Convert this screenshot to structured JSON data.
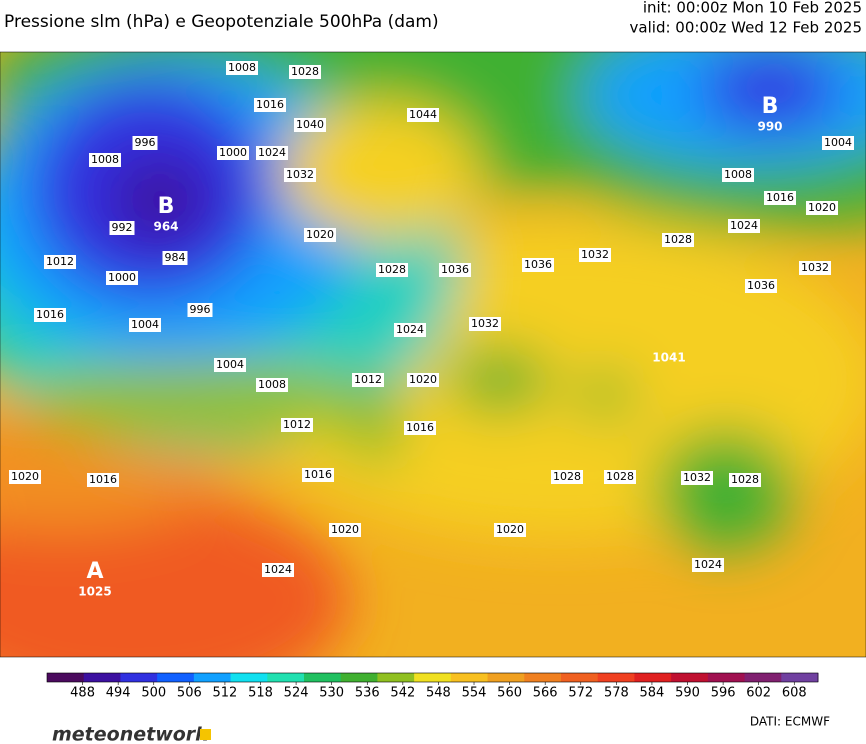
{
  "header": {
    "title": "Pressione slm (hPa) e Geopotenziale 500hPa (dam)",
    "init": "init: 00:00z Mon 10 Feb 2025",
    "valid": "valid: 00:00z Wed 12 Feb 2025"
  },
  "centers": [
    {
      "symbol": "B",
      "value": "964"
    },
    {
      "symbol": "B",
      "value": "990"
    },
    {
      "symbol": "A",
      "value": "1025"
    },
    {
      "symbol": "",
      "value": "1041"
    }
  ],
  "isobar_labels": [
    "1008",
    "1028",
    "1016",
    "1040",
    "1044",
    "1000",
    "1024",
    "1032",
    "996",
    "1008",
    "992",
    "984",
    "1012",
    "1000",
    "1016",
    "1004",
    "996",
    "1020",
    "1028",
    "1036",
    "1032",
    "1024",
    "1004",
    "1008",
    "1012",
    "1020",
    "1012",
    "1016",
    "1016",
    "1020",
    "1016",
    "1020",
    "1024",
    "1020",
    "1036",
    "1032",
    "1028",
    "1024",
    "1020",
    "1016",
    "1008",
    "1004",
    "1036",
    "1032",
    "1028",
    "1028",
    "1032",
    "1028",
    "1024"
  ],
  "colorbar": {
    "range": [
      482,
      612
    ],
    "ticks": [
      488,
      494,
      500,
      506,
      512,
      518,
      524,
      530,
      536,
      542,
      548,
      554,
      560,
      566,
      572,
      578,
      584,
      590,
      596,
      602,
      608
    ],
    "colors": [
      "#4b0a5e",
      "#3c10a0",
      "#3030e0",
      "#1060ff",
      "#10a0ff",
      "#10e0f0",
      "#20e0b0",
      "#20c060",
      "#40b030",
      "#90c020",
      "#f0e020",
      "#f8c020",
      "#f0a020",
      "#f08020",
      "#f06020",
      "#f04020",
      "#e02020",
      "#c01030",
      "#a01050",
      "#802070",
      "#7040a0"
    ]
  },
  "footer": {
    "logo": "meteonetwork",
    "credits": "DATI:  ECMWF"
  }
}
